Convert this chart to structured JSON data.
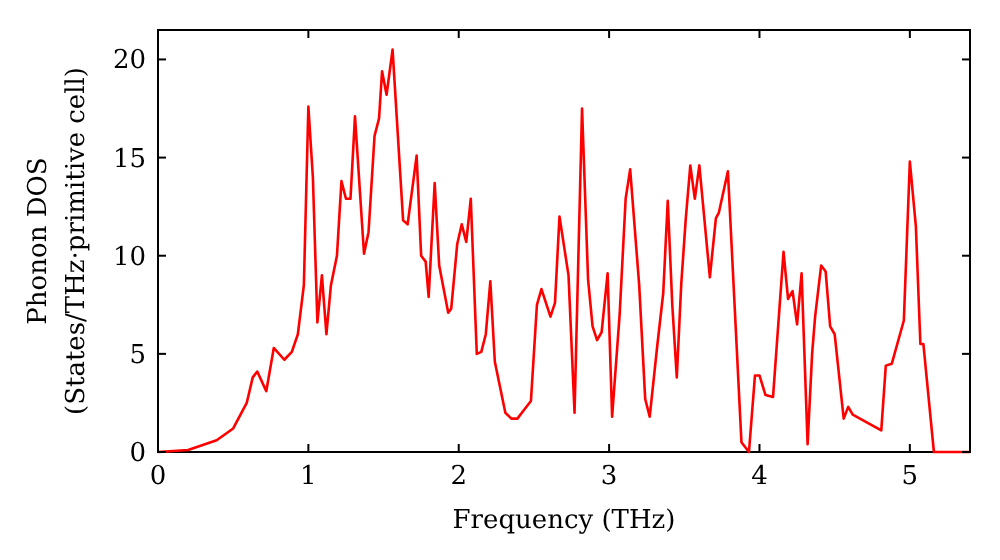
{
  "chart_data": {
    "type": "line",
    "xlabel": "Frequency (THz)",
    "ylabel": "Phonon DOS\n(States/THz·primitive cell)",
    "x": [
      0,
      0.2,
      0.39,
      0.5,
      0.59,
      0.63,
      0.66,
      0.72,
      0.77,
      0.84,
      0.89,
      0.93,
      0.97,
      1.0,
      1.03,
      1.06,
      1.09,
      1.12,
      1.15,
      1.19,
      1.22,
      1.25,
      1.28,
      1.31,
      1.37,
      1.4,
      1.44,
      1.47,
      1.49,
      1.52,
      1.56,
      1.63,
      1.66,
      1.72,
      1.75,
      1.78,
      1.8,
      1.84,
      1.87,
      1.93,
      1.95,
      1.99,
      2.02,
      2.05,
      2.08,
      2.12,
      2.15,
      2.18,
      2.21,
      2.24,
      2.31,
      2.35,
      2.39,
      2.43,
      2.48,
      2.52,
      2.55,
      2.61,
      2.64,
      2.67,
      2.73,
      2.77,
      2.82,
      2.86,
      2.89,
      2.92,
      2.95,
      2.99,
      3.02,
      3.07,
      3.11,
      3.14,
      3.2,
      3.24,
      3.27,
      3.32,
      3.36,
      3.39,
      3.42,
      3.45,
      3.48,
      3.51,
      3.54,
      3.57,
      3.6,
      3.67,
      3.71,
      3.73,
      3.79,
      3.88,
      3.93,
      3.97,
      4.0,
      4.04,
      4.09,
      4.16,
      4.19,
      4.22,
      4.25,
      4.28,
      4.32,
      4.35,
      4.37,
      4.41,
      4.44,
      4.47,
      4.5,
      4.56,
      4.59,
      4.62,
      4.81,
      4.84,
      4.88,
      4.96,
      5.0,
      5.04,
      5.07,
      5.09,
      5.16,
      5.4
    ],
    "series": [
      {
        "color": "#ff0000",
        "values": [
          0,
          0.1,
          0.6,
          1.2,
          2.5,
          3.8,
          4.1,
          3.1,
          5.3,
          4.7,
          5.1,
          6.0,
          8.5,
          17.6,
          14.0,
          6.6,
          9.0,
          6.0,
          8.5,
          10.0,
          13.8,
          12.9,
          12.9,
          17.1,
          10.1,
          11.2,
          16.1,
          17.0,
          19.4,
          18.2,
          20.5,
          11.8,
          11.6,
          15.1,
          10.0,
          9.7,
          7.9,
          13.7,
          9.5,
          7.1,
          7.3,
          10.6,
          11.6,
          10.7,
          12.9,
          5.0,
          5.1,
          6.0,
          8.7,
          4.6,
          2.0,
          1.7,
          1.7,
          2.1,
          2.6,
          7.5,
          8.3,
          6.9,
          7.6,
          12.0,
          9.0,
          2.0,
          17.5,
          8.8,
          6.4,
          5.7,
          6.1,
          9.1,
          1.8,
          7.0,
          12.9,
          14.4,
          8.5,
          2.7,
          1.8,
          5.4,
          8.1,
          12.8,
          7.5,
          3.8,
          8.6,
          11.9,
          14.6,
          12.9,
          14.6,
          8.9,
          11.9,
          12.2,
          14.3,
          0.5,
          0,
          3.9,
          3.9,
          2.9,
          2.8,
          10.2,
          7.8,
          8.2,
          6.5,
          9.1,
          0.4,
          5.0,
          6.9,
          9.5,
          9.2,
          6.4,
          6.0,
          1.7,
          2.3,
          1.9,
          1.1,
          4.4,
          4.5,
          6.7,
          14.8,
          11.5,
          5.5,
          5.5,
          0,
          0
        ]
      }
    ],
    "xlim": [
      0,
      5.4
    ],
    "ylim": [
      0,
      21.5
    ],
    "xticks": [
      0,
      1,
      2,
      3,
      4,
      5
    ],
    "yticks": [
      0,
      5,
      10,
      15,
      20
    ],
    "grid": false,
    "marker": "none",
    "line_style": "solid"
  }
}
